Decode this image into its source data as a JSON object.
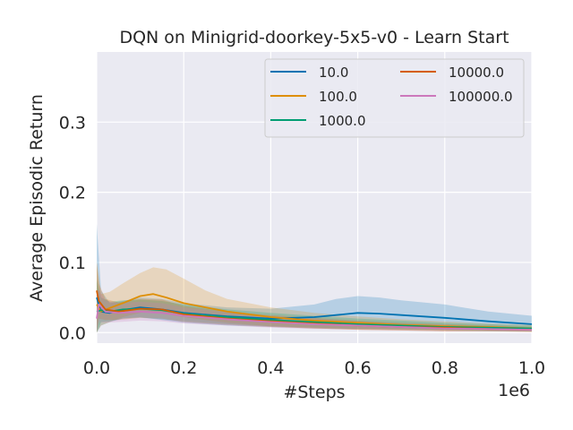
{
  "chart_data": {
    "type": "line",
    "title": "DQN on Minigrid-doorkey-5x5-v0 - Learn Start",
    "xlabel": "#Steps",
    "ylabel": "Average Episodic Return",
    "x_offset_label": "1e6",
    "xlim": [
      0,
      1.0
    ],
    "ylim": [
      -0.015,
      0.4
    ],
    "xticks": [
      0.0,
      0.2,
      0.4,
      0.6,
      0.8,
      1.0
    ],
    "xtick_labels": [
      "0.0",
      "0.2",
      "0.4",
      "0.6",
      "0.8",
      "1.0"
    ],
    "yticks": [
      0.0,
      0.1,
      0.2,
      0.3
    ],
    "ytick_labels": [
      "0.0",
      "0.1",
      "0.2",
      "0.3"
    ],
    "grid": true,
    "legend_position": "top-right",
    "legend_columns": 2,
    "series": [
      {
        "name": "10.0",
        "color": "#0173b2",
        "x": [
          0.0,
          0.01,
          0.03,
          0.06,
          0.1,
          0.15,
          0.2,
          0.3,
          0.4,
          0.5,
          0.55,
          0.6,
          0.65,
          0.7,
          0.8,
          0.9,
          1.0
        ],
        "values": [
          0.05,
          0.03,
          0.028,
          0.032,
          0.036,
          0.033,
          0.028,
          0.023,
          0.02,
          0.022,
          0.025,
          0.028,
          0.027,
          0.025,
          0.021,
          0.016,
          0.012
        ],
        "lower": [
          0.0,
          0.01,
          0.015,
          0.02,
          0.022,
          0.018,
          0.014,
          0.01,
          0.008,
          0.006,
          0.005,
          0.005,
          0.005,
          0.005,
          0.004,
          0.003,
          0.002
        ],
        "upper": [
          0.155,
          0.06,
          0.042,
          0.045,
          0.05,
          0.048,
          0.042,
          0.036,
          0.034,
          0.04,
          0.048,
          0.052,
          0.05,
          0.046,
          0.04,
          0.03,
          0.024
        ]
      },
      {
        "name": "100.0",
        "color": "#de8f05",
        "x": [
          0.0,
          0.01,
          0.03,
          0.06,
          0.1,
          0.13,
          0.16,
          0.2,
          0.25,
          0.3,
          0.4,
          0.5,
          0.6,
          0.7,
          0.8,
          0.9,
          1.0
        ],
        "values": [
          0.04,
          0.03,
          0.035,
          0.042,
          0.052,
          0.055,
          0.05,
          0.042,
          0.036,
          0.03,
          0.022,
          0.017,
          0.014,
          0.011,
          0.009,
          0.008,
          0.006
        ],
        "lower": [
          0.0,
          0.01,
          0.015,
          0.022,
          0.028,
          0.03,
          0.027,
          0.022,
          0.018,
          0.014,
          0.009,
          0.006,
          0.004,
          0.003,
          0.002,
          0.002,
          0.001
        ],
        "upper": [
          0.1,
          0.055,
          0.058,
          0.07,
          0.085,
          0.093,
          0.09,
          0.077,
          0.06,
          0.048,
          0.036,
          0.028,
          0.023,
          0.019,
          0.016,
          0.013,
          0.011
        ]
      },
      {
        "name": "1000.0",
        "color": "#029e73",
        "x": [
          0.0,
          0.01,
          0.03,
          0.06,
          0.1,
          0.15,
          0.2,
          0.3,
          0.4,
          0.5,
          0.6,
          0.7,
          0.8,
          0.9,
          1.0
        ],
        "values": [
          0.03,
          0.032,
          0.03,
          0.033,
          0.034,
          0.032,
          0.027,
          0.022,
          0.018,
          0.015,
          0.012,
          0.01,
          0.008,
          0.007,
          0.006
        ],
        "lower": [
          0.0,
          0.015,
          0.016,
          0.02,
          0.021,
          0.019,
          0.016,
          0.012,
          0.009,
          0.007,
          0.005,
          0.004,
          0.003,
          0.002,
          0.002
        ],
        "upper": [
          0.075,
          0.05,
          0.044,
          0.046,
          0.047,
          0.045,
          0.04,
          0.033,
          0.028,
          0.024,
          0.02,
          0.017,
          0.014,
          0.012,
          0.01
        ]
      },
      {
        "name": "10000.0",
        "color": "#d55e00",
        "x": [
          0.0,
          0.005,
          0.02,
          0.05,
          0.1,
          0.15,
          0.2,
          0.3,
          0.4,
          0.5,
          0.6,
          0.7,
          0.8,
          0.9,
          1.0
        ],
        "values": [
          0.06,
          0.045,
          0.033,
          0.03,
          0.034,
          0.033,
          0.026,
          0.02,
          0.016,
          0.013,
          0.01,
          0.008,
          0.007,
          0.005,
          0.004
        ],
        "lower": [
          0.0,
          0.02,
          0.018,
          0.018,
          0.021,
          0.02,
          0.015,
          0.011,
          0.008,
          0.006,
          0.004,
          0.003,
          0.002,
          0.002,
          0.001
        ],
        "upper": [
          0.1,
          0.07,
          0.048,
          0.043,
          0.048,
          0.047,
          0.038,
          0.03,
          0.025,
          0.021,
          0.017,
          0.014,
          0.012,
          0.01,
          0.008
        ]
      },
      {
        "name": "100000.0",
        "color": "#cc78bc",
        "x": [
          0.0,
          0.005,
          0.02,
          0.05,
          0.1,
          0.15,
          0.2,
          0.3,
          0.4,
          0.5,
          0.6,
          0.7,
          0.8,
          0.9,
          1.0
        ],
        "values": [
          0.02,
          0.04,
          0.03,
          0.028,
          0.03,
          0.028,
          0.024,
          0.019,
          0.015,
          0.012,
          0.01,
          0.008,
          0.006,
          0.005,
          0.004
        ],
        "lower": [
          0.0,
          0.015,
          0.014,
          0.015,
          0.017,
          0.016,
          0.013,
          0.01,
          0.007,
          0.005,
          0.004,
          0.003,
          0.002,
          0.002,
          0.001
        ],
        "upper": [
          0.06,
          0.06,
          0.046,
          0.042,
          0.044,
          0.042,
          0.036,
          0.029,
          0.024,
          0.02,
          0.016,
          0.013,
          0.011,
          0.009,
          0.007
        ]
      }
    ]
  }
}
